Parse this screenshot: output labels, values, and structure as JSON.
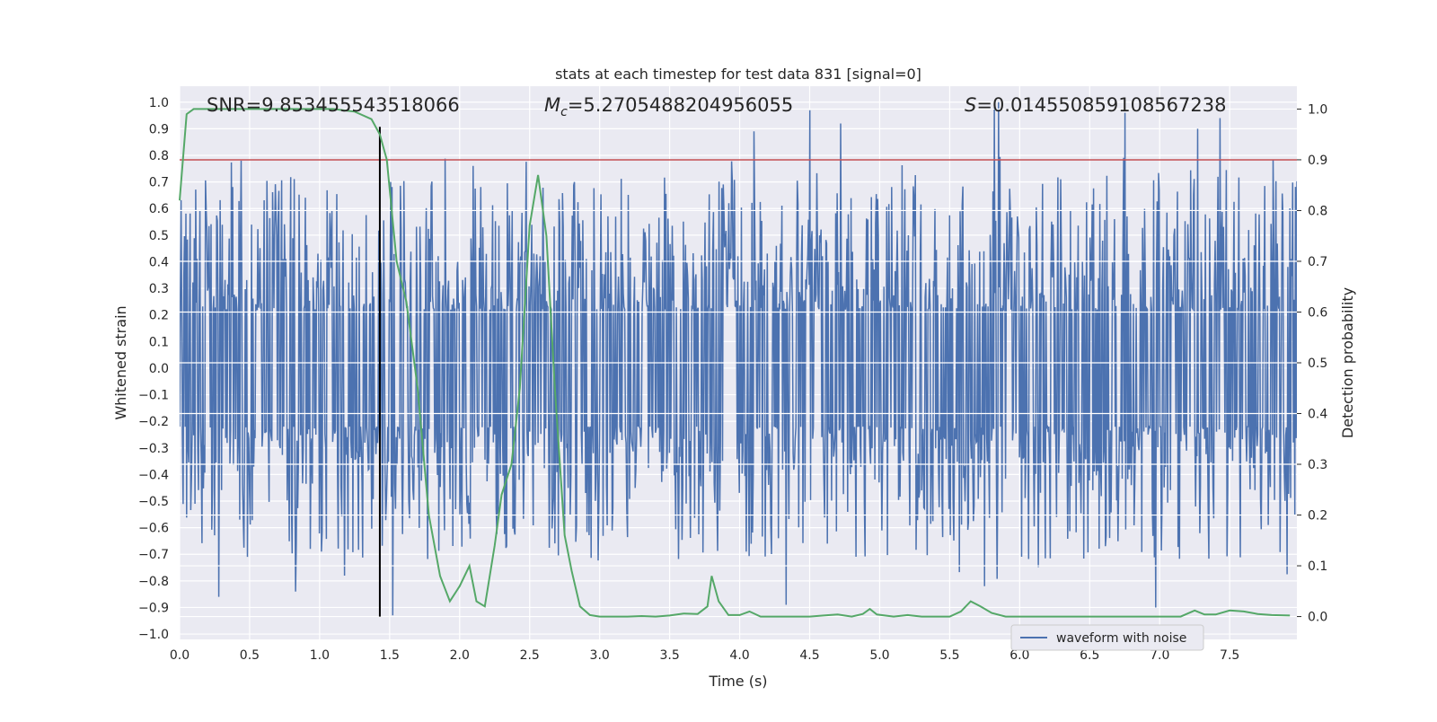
{
  "chart_data": {
    "type": "line",
    "title": "stats at each timestep for test data 831 [signal=0]",
    "xlabel": "Time (s)",
    "ylabel": "Whitened strain",
    "y2label": "Detection probability",
    "xlim": [
      0.0,
      7.98
    ],
    "ylim": [
      -1.02,
      1.06
    ],
    "y2lim": [
      -0.045,
      1.045
    ],
    "x_ticks": [
      "0.0",
      "0.5",
      "1.0",
      "1.5",
      "2.0",
      "2.5",
      "3.0",
      "3.5",
      "4.0",
      "4.5",
      "5.0",
      "5.5",
      "6.0",
      "6.5",
      "7.0",
      "7.5"
    ],
    "y_ticks": [
      "1.0",
      "0.9",
      "0.8",
      "0.7",
      "0.6",
      "0.5",
      "0.4",
      "0.3",
      "0.2",
      "0.1",
      "0.0",
      "−0.1",
      "−0.2",
      "−0.3",
      "−0.4",
      "−0.5",
      "−0.6",
      "−0.7",
      "−0.8",
      "−0.9",
      "−1.0"
    ],
    "y2_ticks": [
      "1.0",
      "0.9",
      "0.8",
      "0.7",
      "0.6",
      "0.5",
      "0.4",
      "0.3",
      "0.2",
      "0.1",
      "0.0"
    ],
    "annotations": {
      "snr": "SNR=9.853455543518066",
      "mc_symbol": "M",
      "mc_sub": "c",
      "mc_value": "=5.2705488204956055",
      "s_symbol": "S",
      "s_value": "=0.014550859108567238"
    },
    "threshold_y2": 0.9,
    "marker_time": 1.43,
    "legend": {
      "entries": [
        "waveform with noise"
      ],
      "position": "lower-right"
    },
    "series": [
      {
        "name": "waveform with noise",
        "axis": "left",
        "color": "#4c72b0",
        "sample_count": 1600,
        "duration": 7.98,
        "notable_peaks": [
          {
            "t": 0.44,
            "v": 0.78
          },
          {
            "t": 4.1,
            "v": 0.89
          },
          {
            "t": 4.5,
            "v": 0.97
          },
          {
            "t": 4.72,
            "v": 0.92
          },
          {
            "t": 5.82,
            "v": 0.98
          },
          {
            "t": 5.85,
            "v": 1.0
          },
          {
            "t": 6.75,
            "v": 0.96
          },
          {
            "t": 7.27,
            "v": 0.9
          },
          {
            "t": 7.43,
            "v": 0.94
          }
        ],
        "notable_troughs": [
          {
            "t": 0.28,
            "v": -0.86
          },
          {
            "t": 0.83,
            "v": -0.84
          },
          {
            "t": 1.52,
            "v": -0.93
          },
          {
            "t": 4.33,
            "v": -0.89
          },
          {
            "t": 5.75,
            "v": -0.82
          },
          {
            "t": 6.97,
            "v": -0.9
          }
        ]
      },
      {
        "name": "detection probability",
        "axis": "right",
        "color": "#55a868",
        "x": [
          0.0,
          0.05,
          0.1,
          0.2,
          0.3,
          0.5,
          0.7,
          0.9,
          1.1,
          1.25,
          1.37,
          1.43,
          1.48,
          1.55,
          1.62,
          1.7,
          1.78,
          1.86,
          1.93,
          2.0,
          2.07,
          2.12,
          2.18,
          2.25,
          2.3,
          2.37,
          2.43,
          2.5,
          2.56,
          2.62,
          2.68,
          2.75,
          2.8,
          2.86,
          2.93,
          3.0,
          3.1,
          3.2,
          3.3,
          3.4,
          3.5,
          3.6,
          3.7,
          3.77,
          3.8,
          3.85,
          3.92,
          4.0,
          4.07,
          4.15,
          4.25,
          4.35,
          4.5,
          4.6,
          4.7,
          4.8,
          4.88,
          4.93,
          4.98,
          5.1,
          5.2,
          5.3,
          5.4,
          5.5,
          5.58,
          5.65,
          5.72,
          5.8,
          5.9,
          6.0,
          6.2,
          6.4,
          6.6,
          6.8,
          7.0,
          7.15,
          7.25,
          7.32,
          7.4,
          7.5,
          7.6,
          7.7,
          7.8,
          7.93
        ],
        "y": [
          0.82,
          0.99,
          1.0,
          1.0,
          1.0,
          1.0,
          1.0,
          1.0,
          1.0,
          0.995,
          0.98,
          0.95,
          0.9,
          0.7,
          0.62,
          0.45,
          0.2,
          0.08,
          0.03,
          0.06,
          0.1,
          0.03,
          0.02,
          0.14,
          0.24,
          0.3,
          0.45,
          0.77,
          0.87,
          0.75,
          0.45,
          0.16,
          0.09,
          0.02,
          0.003,
          0.0,
          0.0,
          0.0,
          0.001,
          0.0,
          0.002,
          0.006,
          0.005,
          0.02,
          0.08,
          0.03,
          0.003,
          0.003,
          0.01,
          0.0,
          0.0,
          0.0,
          0.0,
          0.002,
          0.004,
          0.0,
          0.005,
          0.015,
          0.004,
          0.0,
          0.003,
          0.0,
          0.0,
          0.0,
          0.01,
          0.03,
          0.02,
          0.007,
          0.0,
          0.0,
          0.0,
          0.0,
          0.0,
          0.0,
          0.0,
          0.0,
          0.012,
          0.004,
          0.004,
          0.012,
          0.01,
          0.005,
          0.003,
          0.002
        ]
      }
    ]
  }
}
